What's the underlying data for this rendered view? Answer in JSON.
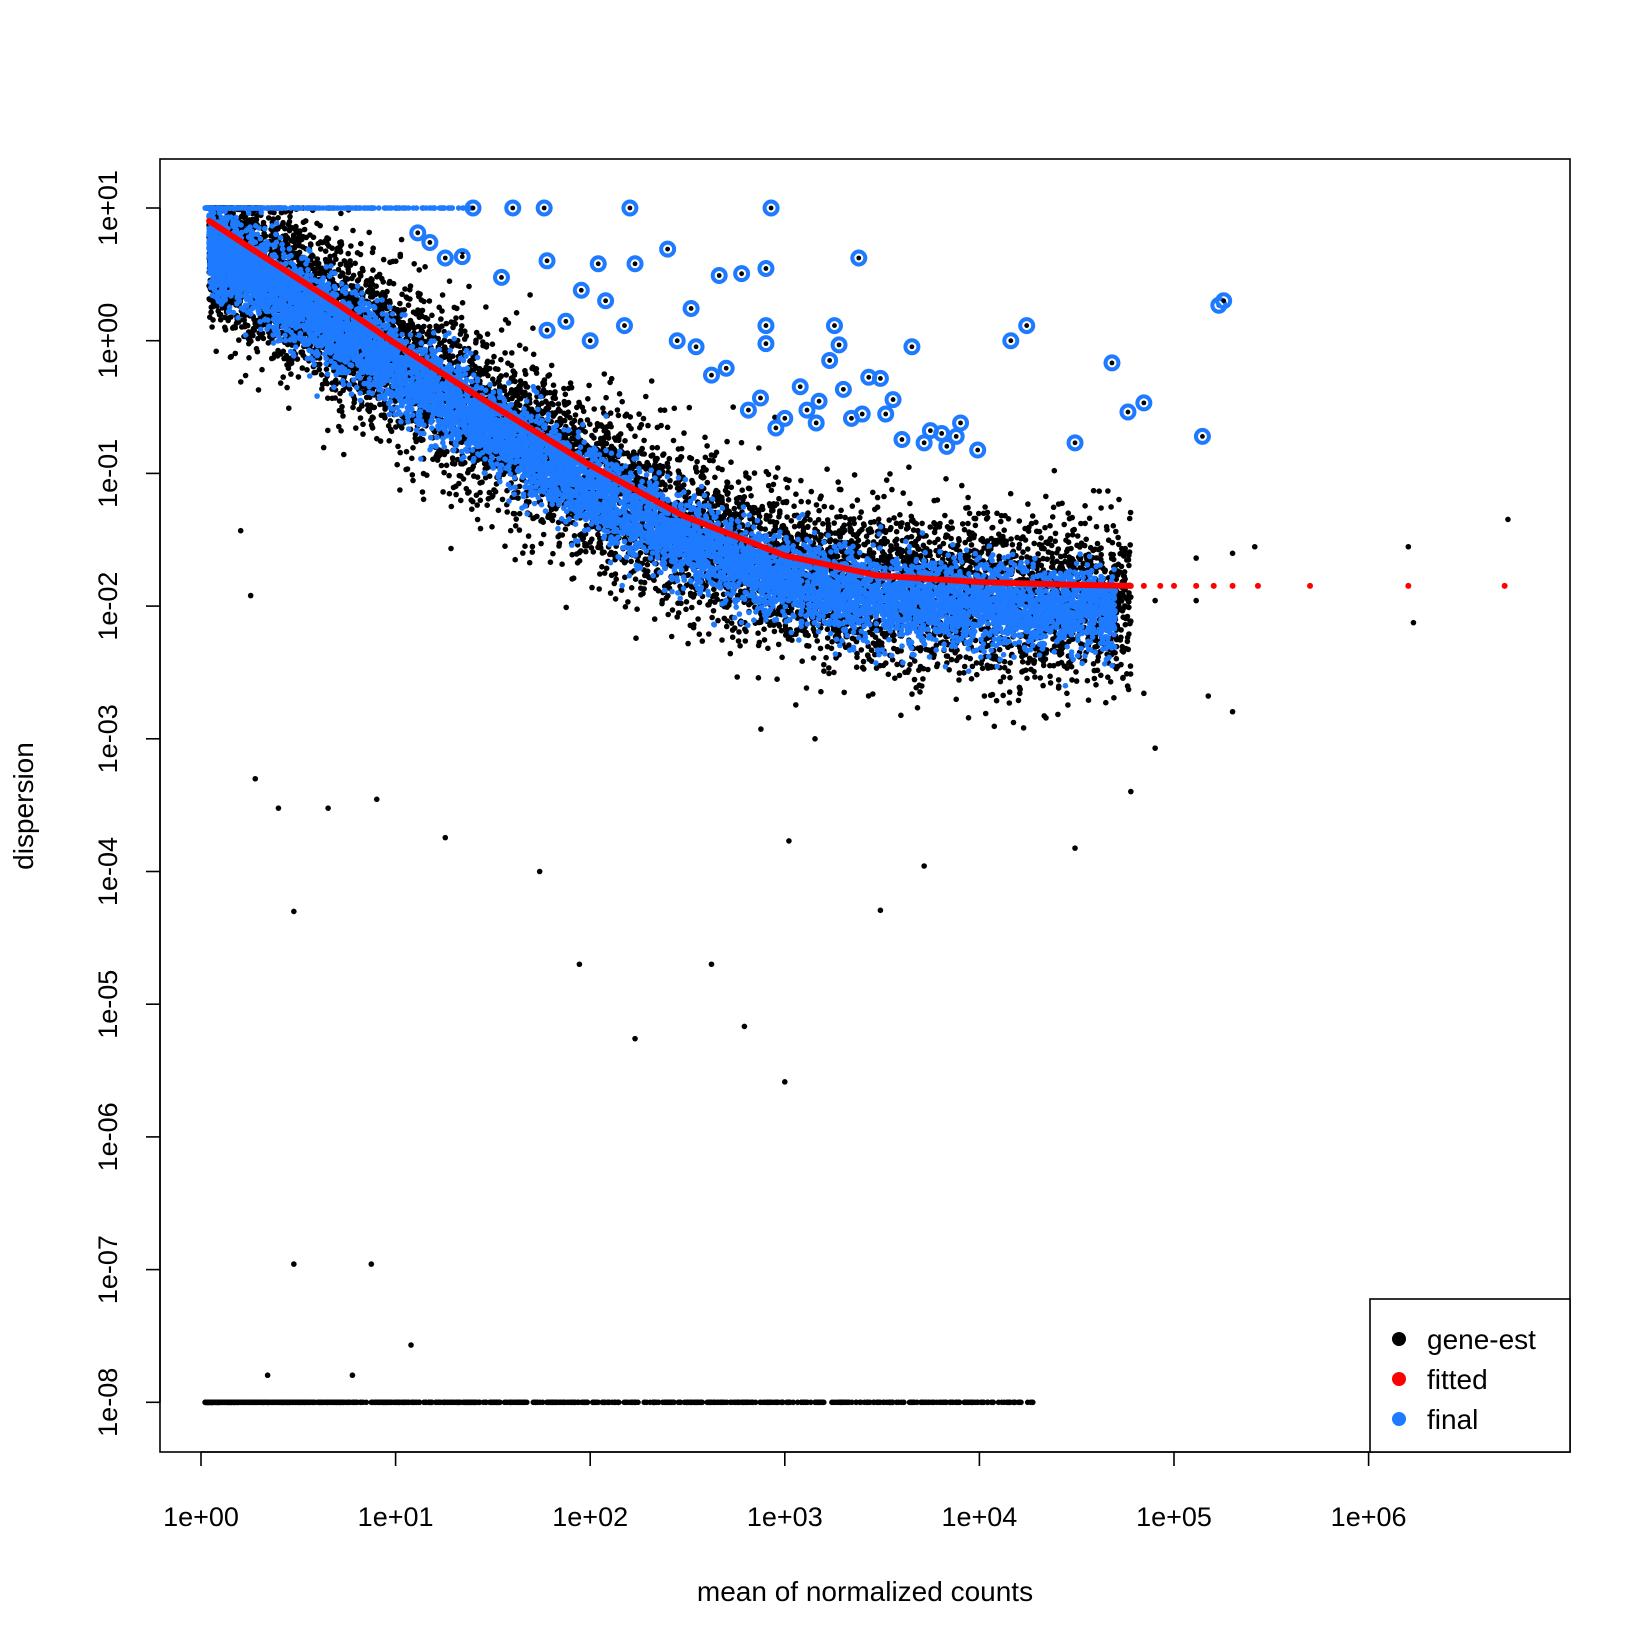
{
  "chart_data": {
    "type": "scatter",
    "title": "",
    "xlabel": "mean of normalized counts",
    "ylabel": "dispersion",
    "x_scale": "log10",
    "y_scale": "log10",
    "xlim": [
      0.6,
      8000000
    ],
    "ylim": [
      5e-09,
      20
    ],
    "x_ticks": [
      1,
      10,
      100,
      1000,
      10000,
      100000,
      1000000
    ],
    "x_tick_labels": [
      "1e+00",
      "1e+01",
      "1e+02",
      "1e+03",
      "1e+04",
      "1e+05",
      "1e+06"
    ],
    "y_ticks": [
      1e-08,
      1e-07,
      1e-06,
      1e-05,
      0.0001,
      0.001,
      0.01,
      0.1,
      1,
      10
    ],
    "y_tick_labels": [
      "1e-08",
      "1e-07",
      "1e-06",
      "1e-05",
      "1e-04",
      "1e-03",
      "1e-02",
      "1e-01",
      "1e+00",
      "1e+01"
    ],
    "grid": false,
    "legend_position": "bottom-right",
    "legend": [
      {
        "label": "gene-est",
        "color": "#000000"
      },
      {
        "label": "fitted",
        "color": "#ff0000"
      },
      {
        "label": "final",
        "color": "#1e7bff"
      }
    ],
    "series": [
      {
        "name": "fitted",
        "color": "#ff0000",
        "kind": "line",
        "points": [
          [
            1.1,
            8.0
          ],
          [
            2,
            4.5
          ],
          [
            5,
            1.9
          ],
          [
            10,
            0.95
          ],
          [
            30,
            0.34
          ],
          [
            100,
            0.115
          ],
          [
            300,
            0.048
          ],
          [
            1000,
            0.024
          ],
          [
            3000,
            0.017
          ],
          [
            10000,
            0.0152
          ],
          [
            30000,
            0.0145
          ],
          [
            60000,
            0.0142
          ]
        ]
      },
      {
        "name": "fitted-points",
        "color": "#ff0000",
        "kind": "points",
        "points": [
          [
            70000,
            0.0142
          ],
          [
            85000,
            0.0142
          ],
          [
            100000,
            0.0142
          ],
          [
            130000,
            0.0142
          ],
          [
            160000,
            0.0142
          ],
          [
            200000,
            0.0142
          ],
          [
            270000,
            0.0142
          ],
          [
            500000,
            0.0142
          ],
          [
            1600000,
            0.0142
          ],
          [
            5000000,
            0.0142
          ]
        ]
      },
      {
        "name": "gene-est-outliers",
        "color": "#000000",
        "kind": "points",
        "points": [
          [
            3,
            1.1e-07
          ],
          [
            7.5,
            1.1e-07
          ],
          [
            12,
            2.7e-08
          ],
          [
            2.2,
            1.6e-08
          ],
          [
            6,
            1.6e-08
          ],
          [
            3,
            5e-05
          ],
          [
            2.5,
            0.0003
          ],
          [
            1.9,
            0.0005
          ],
          [
            4.5,
            0.0003
          ],
          [
            8,
            0.00035
          ],
          [
            18,
            0.00018
          ],
          [
            55,
            0.0001
          ],
          [
            88,
            2e-05
          ],
          [
            170,
            5.5e-06
          ],
          [
            420,
            2e-05
          ],
          [
            620,
            6.8e-06
          ],
          [
            1000,
            2.6e-06
          ],
          [
            1050,
            0.00017
          ],
          [
            3100,
            5.1e-05
          ],
          [
            5200,
            0.00011
          ],
          [
            31000,
            0.00015
          ],
          [
            80000,
            0.00085
          ],
          [
            150000,
            0.0021
          ],
          [
            200000,
            0.0016
          ],
          [
            1700000,
            0.0075
          ],
          [
            5200000,
            0.045
          ],
          [
            1600000,
            0.028
          ],
          [
            260000,
            0.028
          ],
          [
            200000,
            0.025
          ],
          [
            130000,
            0.023
          ],
          [
            130000,
            0.011
          ],
          [
            80000,
            0.011
          ],
          [
            70000,
            0.0022
          ],
          [
            60000,
            0.0004
          ],
          [
            1.6,
            0.037
          ],
          [
            1.8,
            0.012
          ]
        ]
      },
      {
        "name": "final-outliers",
        "color": "#1e7bff",
        "kind": "circled",
        "points": [
          [
            160,
            10
          ],
          [
            850,
            10
          ],
          [
            58,
            10
          ],
          [
            40,
            10
          ],
          [
            25,
            10
          ],
          [
            2400,
            4.2
          ],
          [
            800,
            3.5
          ],
          [
            600,
            3.2
          ],
          [
            460,
            3.1
          ],
          [
            250,
            4.9
          ],
          [
            110,
            3.8
          ],
          [
            170,
            3.8
          ],
          [
            330,
            1.75
          ],
          [
            800,
            1.3
          ],
          [
            1800,
            1.3
          ],
          [
            4500,
            0.9
          ],
          [
            14500,
            1.0
          ],
          [
            17500,
            1.3
          ],
          [
            48000,
            0.68
          ],
          [
            70000,
            0.34
          ],
          [
            58000,
            0.29
          ],
          [
            170000,
            1.85
          ],
          [
            180000,
            2.0
          ],
          [
            140000,
            0.19
          ],
          [
            31000,
            0.17
          ],
          [
            9800,
            0.15
          ],
          [
            5600,
            0.21
          ],
          [
            8000,
            0.24
          ],
          [
            3600,
            0.36
          ],
          [
            2700,
            0.53
          ],
          [
            3100,
            0.52
          ],
          [
            1900,
            0.93
          ],
          [
            1700,
            0.71
          ],
          [
            800,
            0.95
          ],
          [
            750,
            0.37
          ],
          [
            1000,
            0.26
          ],
          [
            1450,
            0.24
          ],
          [
            1300,
            0.3
          ],
          [
            60,
            4.0
          ],
          [
            35,
            3.0
          ],
          [
            15,
            5.5
          ],
          [
            13,
            6.5
          ],
          [
            18,
            4.2
          ],
          [
            22,
            4.3
          ],
          [
            90,
            2.4
          ],
          [
            120,
            2.0
          ],
          [
            100,
            1.0
          ],
          [
            60,
            1.2
          ],
          [
            75,
            1.4
          ],
          [
            150,
            1.3
          ],
          [
            280,
            1.0
          ],
          [
            350,
            0.9
          ],
          [
            420,
            0.55
          ],
          [
            500,
            0.62
          ],
          [
            650,
            0.3
          ],
          [
            900,
            0.22
          ],
          [
            1500,
            0.35
          ],
          [
            2000,
            0.43
          ],
          [
            2500,
            0.28
          ],
          [
            3300,
            0.28
          ],
          [
            4000,
            0.18
          ],
          [
            6800,
            0.16
          ],
          [
            7600,
            0.19
          ],
          [
            6400,
            0.2
          ],
          [
            5200,
            0.17
          ],
          [
            2200,
            0.26
          ],
          [
            1200,
            0.45
          ]
        ]
      }
    ],
    "clouds": [
      {
        "name": "gene-est-main",
        "color": "#000000",
        "count": 9000,
        "x_range": [
          1.1,
          60000
        ],
        "center_offset": -0.12,
        "spread": 0.3
      },
      {
        "name": "gene-est-floor",
        "color": "#000000",
        "count": 900,
        "x_range": [
          1.05,
          19000
        ],
        "y_value": 1e-08
      },
      {
        "name": "final-main",
        "color": "#1e7bff",
        "count": 9000,
        "x_range": [
          1.1,
          50000
        ],
        "center_offset": -0.18,
        "spread": 0.16
      },
      {
        "name": "top-cap",
        "color": "#1e7bff",
        "count": 220,
        "x_range": [
          1.05,
          25
        ],
        "y_value": 10
      }
    ]
  }
}
